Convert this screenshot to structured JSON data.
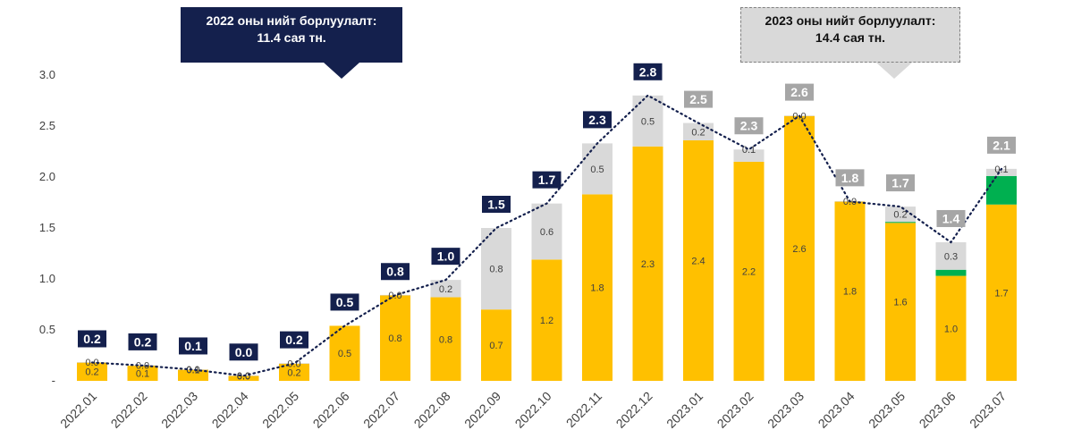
{
  "callouts": {
    "y2022": {
      "line1": "2022 оны нийт борлуулалт:",
      "line2": "11.4 сая тн."
    },
    "y2023": {
      "line1": "2023 оны нийт борлуулалт:",
      "line2": "14.4 сая тн."
    }
  },
  "chart_data": {
    "type": "bar",
    "stacked": true,
    "title": "",
    "xlabel": "",
    "ylabel": "",
    "ylim": [
      0,
      3.0
    ],
    "yticks": [
      "-",
      "0.5",
      "1.0",
      "1.5",
      "2.0",
      "2.5",
      "3.0"
    ],
    "grid": false,
    "categories": [
      "2022.01",
      "2022.02",
      "2022.03",
      "2022.04",
      "2022.05",
      "2022.06",
      "2022.07",
      "2022.08",
      "2022.09",
      "2022.10",
      "2022.11",
      "2022.12",
      "2023.01",
      "2023.02",
      "2023.03",
      "2023.04",
      "2023.05",
      "2023.06",
      "2023.07"
    ],
    "series": [
      {
        "color": "#ffc000",
        "values": [
          0.18,
          0.15,
          0.11,
          0.05,
          0.17,
          0.54,
          0.84,
          0.82,
          0.7,
          1.19,
          1.83,
          2.3,
          2.36,
          2.15,
          2.6,
          1.76,
          1.55,
          1.03,
          1.73
        ],
        "labels": [
          "0.2",
          "0.1",
          "0.1",
          "0.0",
          "0.2",
          "0.5",
          "0.8",
          "0.8",
          "0.7",
          "1.2",
          "1.8",
          "2.3",
          "2.4",
          "2.2",
          "2.6",
          "1.8",
          "1.6",
          "1.0",
          "1.7"
        ]
      },
      {
        "color": "#00b050",
        "values": [
          0,
          0,
          0,
          0,
          0,
          0,
          0,
          0,
          0,
          0,
          0,
          0,
          0,
          0,
          0,
          0,
          0.01,
          0.06,
          0.28
        ],
        "labels": [
          "",
          "",
          "",
          "",
          "",
          "",
          "",
          "",
          "",
          "",
          "",
          "",
          "",
          "",
          "",
          "",
          "",
          "",
          ""
        ]
      },
      {
        "color": "#d9d9d9",
        "values": [
          0.003,
          0.003,
          0.003,
          0.003,
          0.003,
          0,
          0.003,
          0.17,
          0.8,
          0.55,
          0.5,
          0.5,
          0.17,
          0.12,
          0.003,
          0.003,
          0.15,
          0.27,
          0.07
        ],
        "labels": [
          "0.0",
          "0.0",
          "0.0",
          "0.0",
          "0.0",
          "",
          "0.0",
          "0.2",
          "0.8",
          "0.6",
          "0.5",
          "0.5",
          "0.2",
          "0.1",
          "0.0",
          "0.0",
          "0.2",
          "0.3",
          "0.1"
        ]
      }
    ],
    "totals": [
      0.18,
      0.15,
      0.11,
      0.05,
      0.17,
      0.54,
      0.84,
      0.99,
      1.5,
      1.74,
      2.33,
      2.8,
      2.53,
      2.27,
      2.6,
      1.76,
      1.71,
      1.36,
      2.08
    ],
    "total_labels": [
      "0.2",
      "0.2",
      "0.1",
      "0.0",
      "0.2",
      "0.5",
      "0.8",
      "1.0",
      "1.5",
      "1.7",
      "2.3",
      "2.8",
      "2.5",
      "2.3",
      "2.6",
      "1.8",
      "1.7",
      "1.4",
      "2.1"
    ],
    "total_label_colors": [
      "#14204d",
      "#14204d",
      "#14204d",
      "#14204d",
      "#14204d",
      "#14204d",
      "#14204d",
      "#14204d",
      "#14204d",
      "#14204d",
      "#14204d",
      "#14204d",
      "#a6a6a6",
      "#a6a6a6",
      "#a6a6a6",
      "#a6a6a6",
      "#a6a6a6",
      "#a6a6a6",
      "#a6a6a6"
    ],
    "total_line": {
      "style": "dotted",
      "color": "#14204d"
    }
  }
}
